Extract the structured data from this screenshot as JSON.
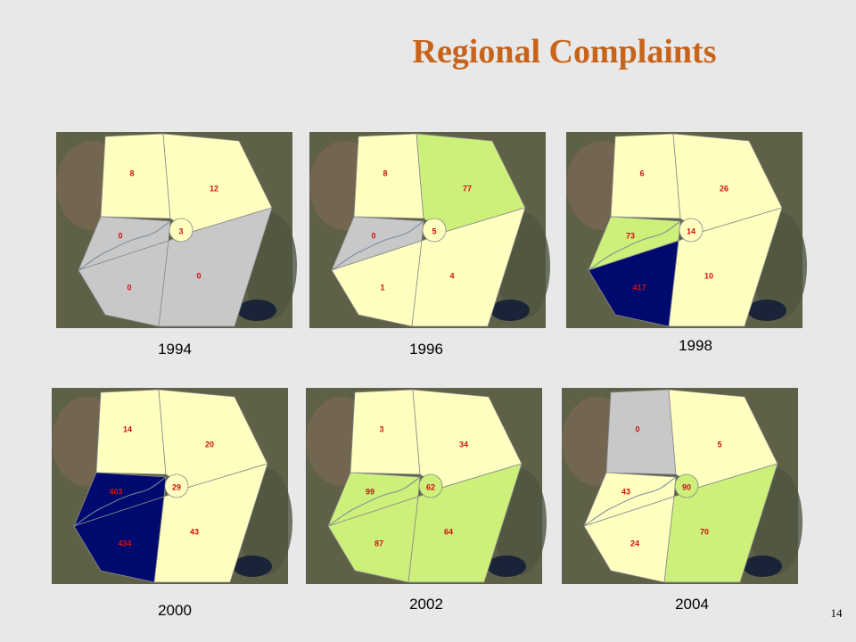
{
  "title": "Regional Complaints",
  "page_number": "14",
  "maps": [
    {
      "year": "1994",
      "regions": [
        {
          "value": 8,
          "color": "#ffffc0"
        },
        {
          "value": 12,
          "color": "#ffffc0"
        },
        {
          "value": 3,
          "color": "#ffffc0"
        },
        {
          "value": 0,
          "color": "#c8c8c8"
        },
        {
          "value": 0,
          "color": "#c8c8c8"
        },
        {
          "value": 0,
          "color": "#c8c8c8"
        }
      ]
    },
    {
      "year": "1996",
      "regions": [
        {
          "value": 8,
          "color": "#ffffc0"
        },
        {
          "value": 77,
          "color": "#ccf07a"
        },
        {
          "value": 5,
          "color": "#ffffc0"
        },
        {
          "value": 0,
          "color": "#c8c8c8"
        },
        {
          "value": 1,
          "color": "#ffffc0"
        },
        {
          "value": 4,
          "color": "#ffffc0"
        }
      ]
    },
    {
      "year": "1998",
      "regions": [
        {
          "value": 6,
          "color": "#ffffc0"
        },
        {
          "value": 26,
          "color": "#ffffc0"
        },
        {
          "value": 14,
          "color": "#ffffc0"
        },
        {
          "value": 73,
          "color": "#ccf07a"
        },
        {
          "value": 417,
          "color": "#000a6e"
        },
        {
          "value": 10,
          "color": "#ffffc0"
        }
      ]
    },
    {
      "year": "2000",
      "regions": [
        {
          "value": 14,
          "color": "#ffffc0"
        },
        {
          "value": 20,
          "color": "#ffffc0"
        },
        {
          "value": 29,
          "color": "#ffffc0"
        },
        {
          "value": 403,
          "color": "#000a6e"
        },
        {
          "value": 434,
          "color": "#000a6e"
        },
        {
          "value": 43,
          "color": "#ffffc0"
        }
      ]
    },
    {
      "year": "2002",
      "regions": [
        {
          "value": 3,
          "color": "#ffffc0"
        },
        {
          "value": 34,
          "color": "#ffffc0"
        },
        {
          "value": 62,
          "color": "#ccf07a"
        },
        {
          "value": 99,
          "color": "#ccf07a"
        },
        {
          "value": 87,
          "color": "#ccf07a"
        },
        {
          "value": 64,
          "color": "#ccf07a"
        }
      ]
    },
    {
      "year": "2004",
      "regions": [
        {
          "value": 0,
          "color": "#c8c8c8"
        },
        {
          "value": 5,
          "color": "#ffffc0"
        },
        {
          "value": 90,
          "color": "#ccf07a"
        },
        {
          "value": 43,
          "color": "#ffffc0"
        },
        {
          "value": 24,
          "color": "#ffffc0"
        },
        {
          "value": 70,
          "color": "#ccf07a"
        }
      ]
    }
  ]
}
